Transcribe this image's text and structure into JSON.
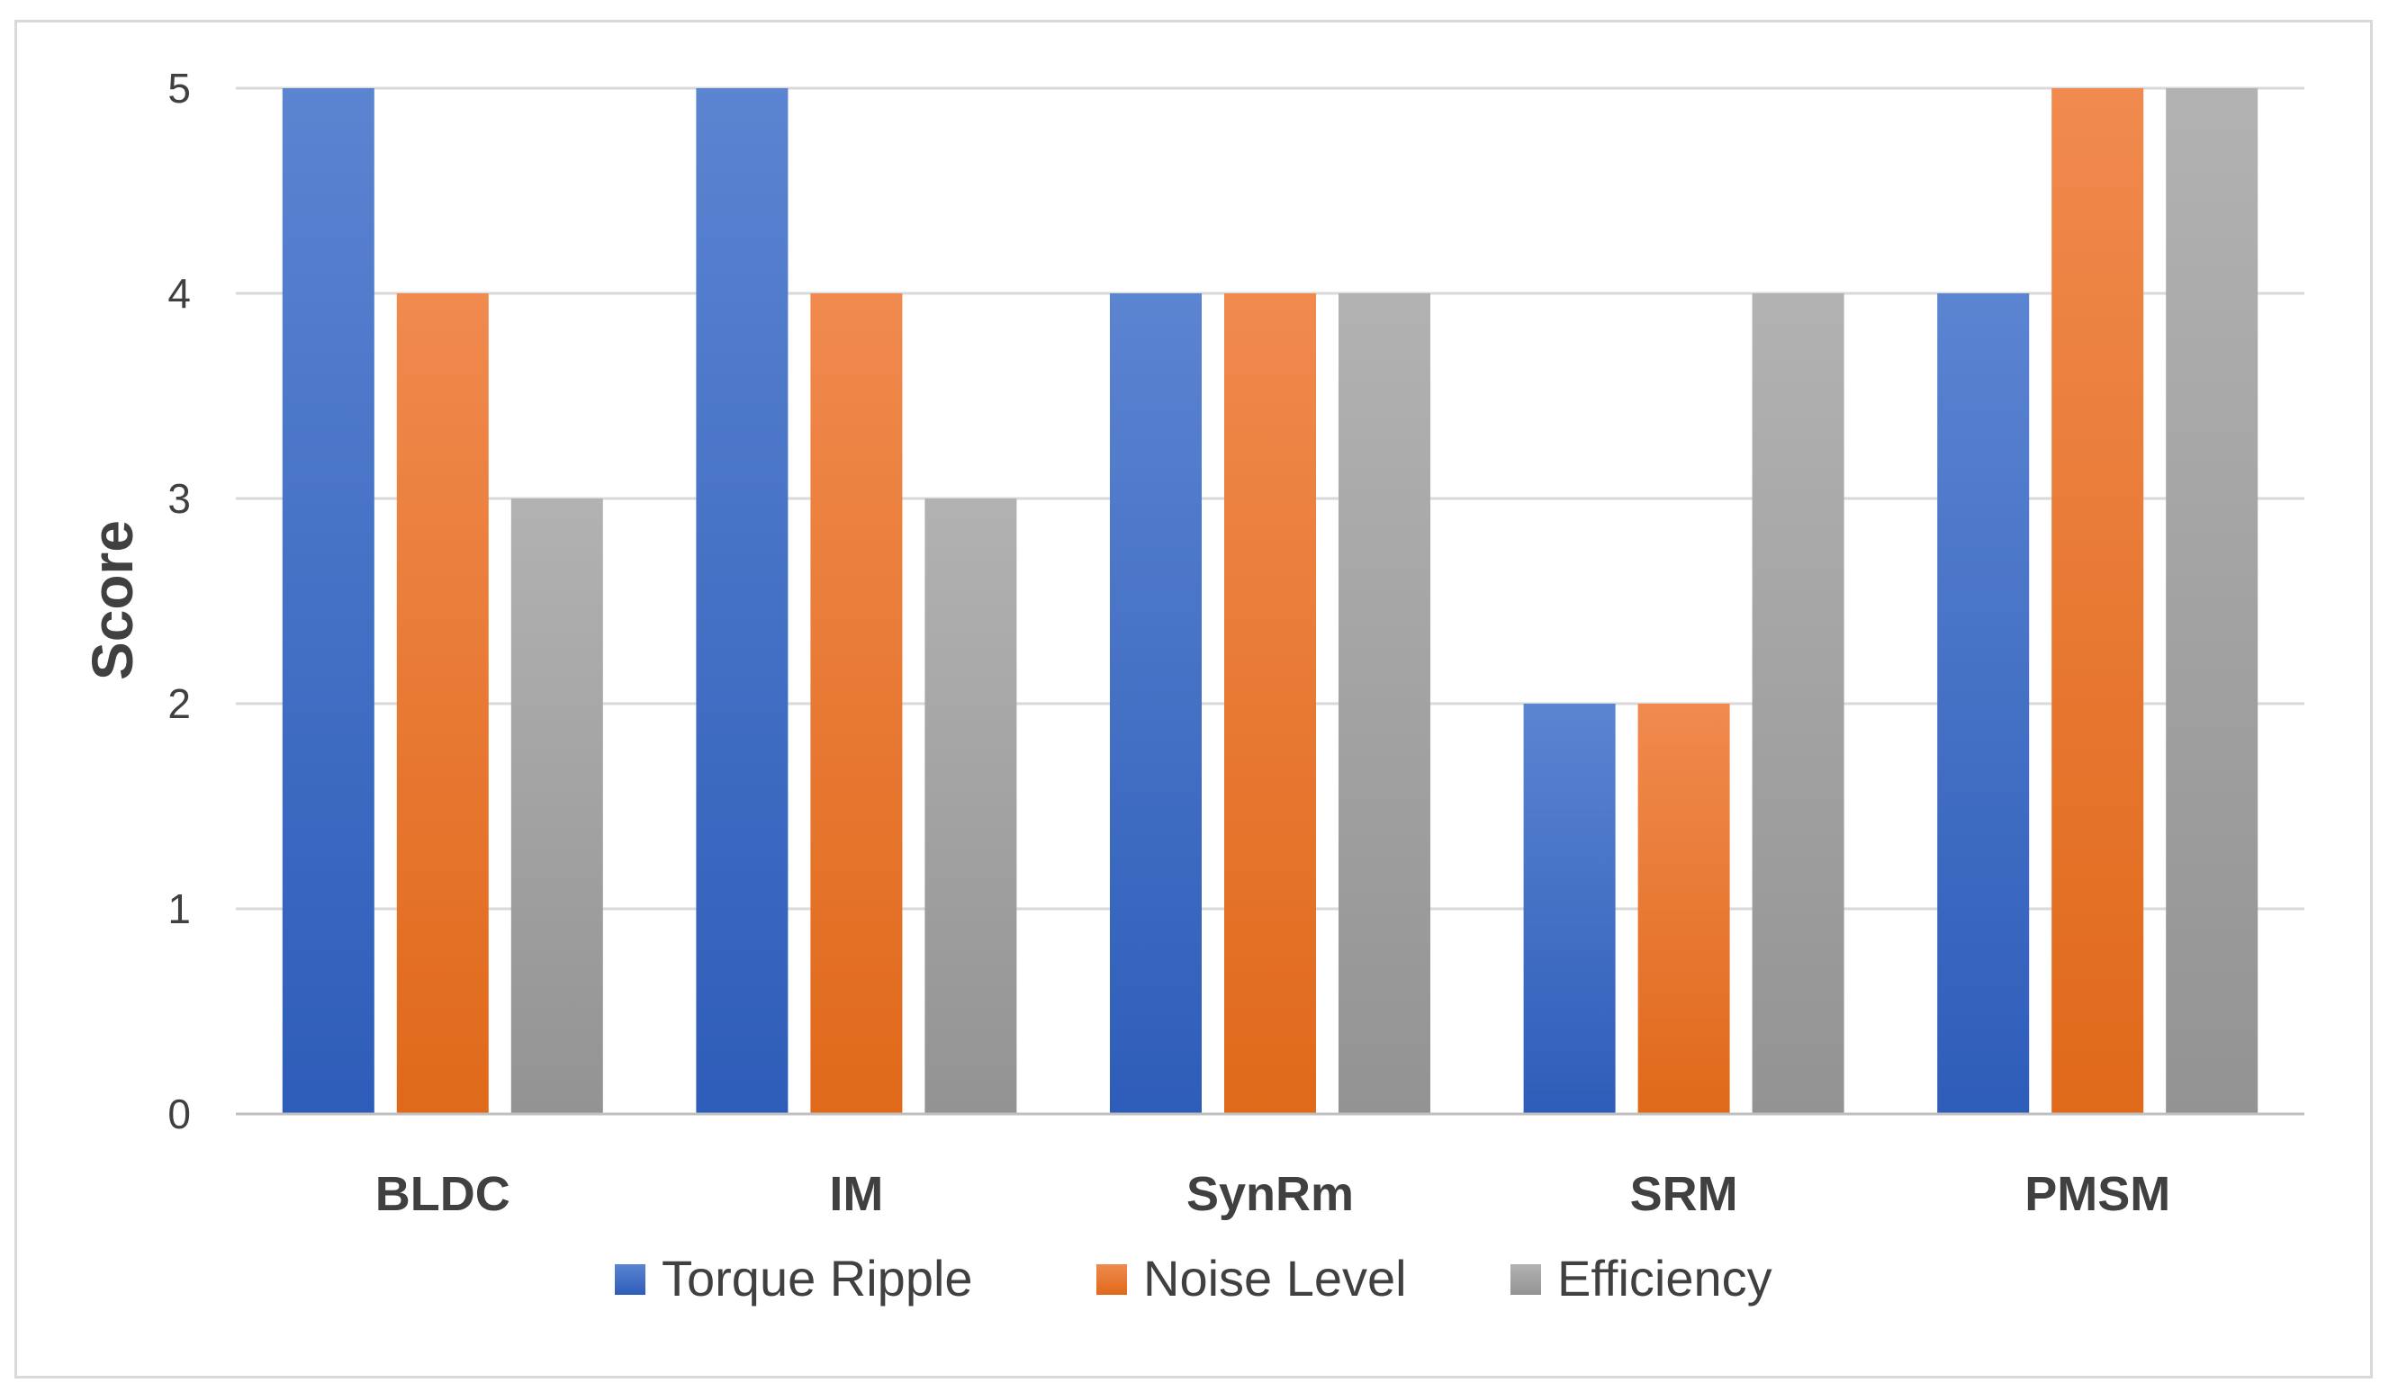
{
  "chart_data": {
    "type": "bar",
    "title": "",
    "xlabel": "",
    "ylabel": "Score",
    "ylim": [
      0,
      5
    ],
    "yticks": [
      0,
      1,
      2,
      3,
      4,
      5
    ],
    "grid": true,
    "legend_position": "bottom",
    "categories": [
      "BLDC",
      "IM",
      "SynRm",
      "SRM",
      "PMSM"
    ],
    "series": [
      {
        "name": "Torque Ripple",
        "values": [
          5,
          5,
          4,
          2,
          4
        ],
        "color": "#4472C4",
        "color_light": "#5B84D1",
        "color_dark": "#2E5DB9"
      },
      {
        "name": "Noise Level",
        "values": [
          4,
          4,
          4,
          2,
          5
        ],
        "color": "#ED7D31",
        "color_light": "#F08A4E",
        "color_dark": "#E0691A"
      },
      {
        "name": "Efficiency",
        "values": [
          3,
          3,
          4,
          4,
          5
        ],
        "color": "#A5A5A5",
        "color_light": "#B2B2B2",
        "color_dark": "#939393"
      }
    ]
  }
}
